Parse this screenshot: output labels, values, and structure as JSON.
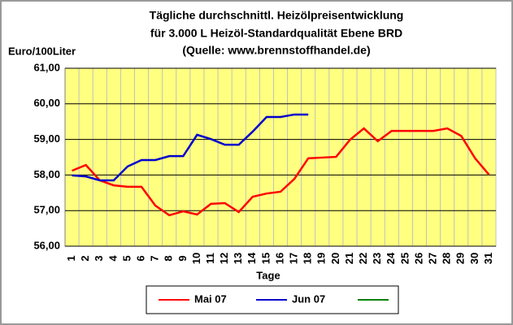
{
  "chart_data": {
    "type": "line",
    "title": [
      "Tägliche durchschnittl. Heizölpreisentwicklung",
      "für 3.000 L Heizöl-Standardqualität Ebene BRD",
      "(Quelle: www.brennstoffhandel.de)"
    ],
    "y_label": "Euro/100Liter",
    "x_label": "Tage",
    "categories": [
      "1",
      "2",
      "3",
      "4",
      "5",
      "6",
      "7",
      "8",
      "9",
      "10",
      "11",
      "12",
      "13",
      "14",
      "15",
      "16",
      "17",
      "18",
      "19",
      "20",
      "21",
      "22",
      "23",
      "24",
      "25",
      "26",
      "27",
      "28",
      "29",
      "30",
      "31"
    ],
    "series": [
      {
        "name": "Mai 07",
        "color": "#ff0000",
        "values": [
          58.12,
          58.28,
          57.85,
          57.71,
          57.67,
          57.67,
          57.14,
          56.87,
          56.98,
          56.89,
          57.19,
          57.21,
          56.96,
          57.39,
          57.48,
          57.53,
          57.89,
          58.47,
          58.49,
          58.51,
          58.99,
          59.31,
          58.95,
          59.24,
          59.24,
          59.24,
          59.24,
          59.31,
          59.1,
          58.47,
          58.01
        ]
      },
      {
        "name": "Jun 07",
        "color": "#0000cc",
        "values": [
          57.99,
          57.96,
          57.85,
          57.85,
          58.24,
          58.42,
          58.42,
          58.53,
          58.53,
          59.13,
          59.01,
          58.85,
          58.85,
          59.22,
          59.63,
          59.63,
          59.7,
          59.7,
          null,
          null,
          null,
          null,
          null,
          null,
          null,
          null,
          null,
          null,
          null,
          null,
          null
        ]
      }
    ],
    "ylim": [
      56,
      61
    ],
    "yticks": [
      {
        "value": 56,
        "label": "56,00"
      },
      {
        "value": 57,
        "label": "57,00"
      },
      {
        "value": 58,
        "label": "58,00"
      },
      {
        "value": 59,
        "label": "59,00"
      },
      {
        "value": 60,
        "label": "60,00"
      },
      {
        "value": 61,
        "label": "61,00"
      }
    ],
    "grid": true,
    "plot_background": "#ffff80"
  }
}
